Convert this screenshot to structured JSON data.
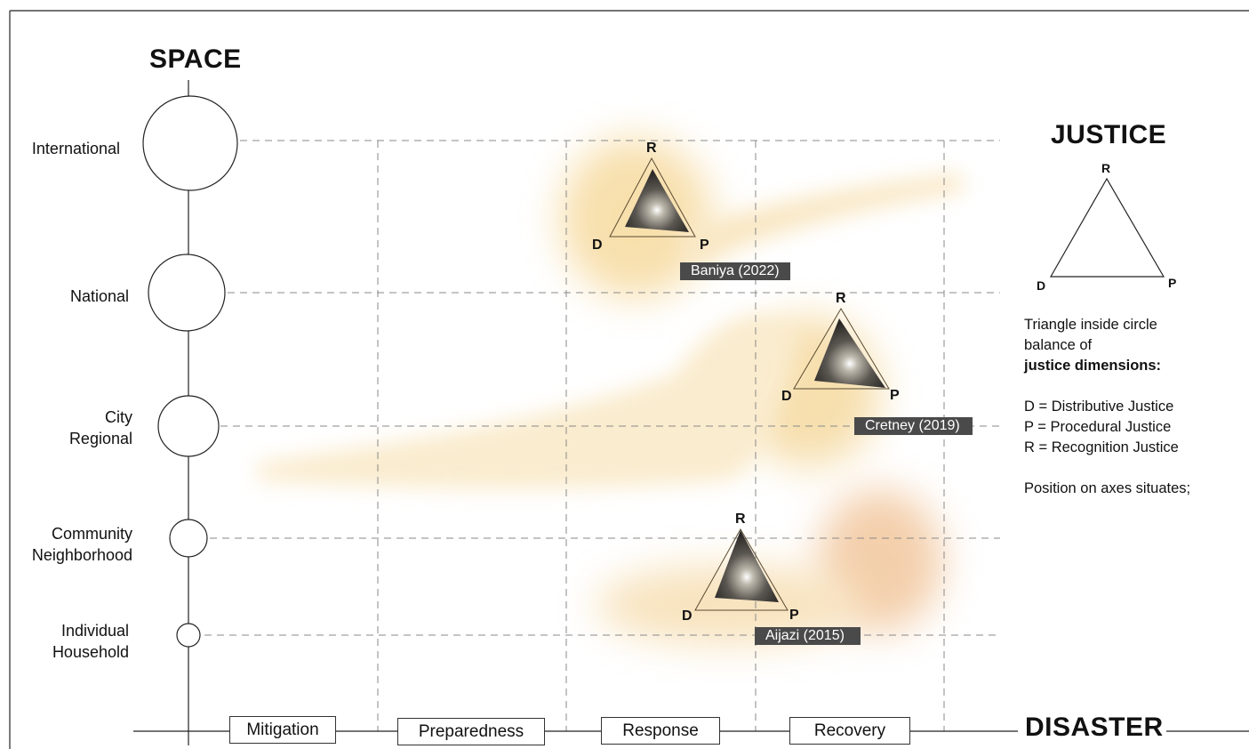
{
  "space_axis": {
    "title": "SPACE",
    "scales": [
      {
        "line1": "International",
        "line2": ""
      },
      {
        "line1": "National",
        "line2": ""
      },
      {
        "line1": "City",
        "line2": "Regional"
      },
      {
        "line1": "Community",
        "line2": "Neighborhood"
      },
      {
        "line1": "Individual",
        "line2": "Household"
      }
    ]
  },
  "disaster_axis": {
    "title": "DISASTER",
    "phases": [
      "Mitigation",
      "Preparedness",
      "Response",
      "Recovery"
    ]
  },
  "justice_legend": {
    "title": "JUSTICE",
    "vertex_r": "R",
    "vertex_d": "D",
    "vertex_p": "P",
    "line1": "Triangle inside circle",
    "line2": "balance of",
    "line3": "justice dimensions:",
    "def_d": "D = Distributive Justice",
    "def_p": "P = Procedural Justice",
    "def_r": "R = Recognition Justice",
    "position_note": "Position on axes situates;"
  },
  "studies": [
    {
      "label": "Baniya (2022)",
      "phase": "Response",
      "scale": "International"
    },
    {
      "label": "Cretney (2019)",
      "phase": "Recovery",
      "scale": "National"
    },
    {
      "label": "Aijazi (2015)",
      "phase": "Response / Recovery",
      "scale": "Community"
    }
  ],
  "colors": {
    "haze": "#f0c870",
    "haze_warm": "#ecae6c",
    "triangle_dark": "#2f2f2f",
    "label_bg": "#4a4a4a",
    "grid": "#888888"
  }
}
